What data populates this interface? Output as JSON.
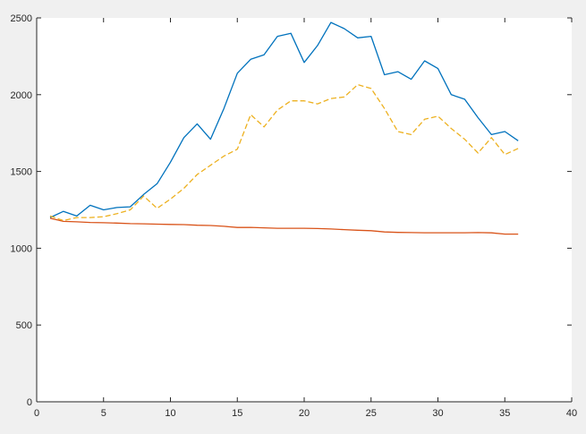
{
  "chart_data": {
    "type": "line",
    "title": "",
    "xlabel": "",
    "ylabel": "",
    "xlim": [
      0,
      40
    ],
    "ylim": [
      0,
      2500
    ],
    "xticks": [
      0,
      5,
      10,
      15,
      20,
      25,
      30,
      35,
      40
    ],
    "yticks": [
      0,
      500,
      1000,
      1500,
      2000,
      2500
    ],
    "xtick_labels": [
      "0",
      "5",
      "10",
      "15",
      "20",
      "25",
      "30",
      "35",
      "40"
    ],
    "ytick_labels": [
      "0",
      "500",
      "1000",
      "1500",
      "2000",
      "2500"
    ],
    "grid": false,
    "x": [
      1,
      2,
      3,
      4,
      5,
      6,
      7,
      8,
      9,
      10,
      11,
      12,
      13,
      14,
      15,
      16,
      17,
      18,
      19,
      20,
      21,
      22,
      23,
      24,
      25,
      26,
      27,
      28,
      29,
      30,
      31,
      32,
      33,
      34,
      35,
      36
    ],
    "series": [
      {
        "color": "#0072bd",
        "dash": "solid",
        "values": [
          1200,
          1240,
          1210,
          1280,
          1250,
          1265,
          1270,
          1350,
          1420,
          1560,
          1720,
          1810,
          1710,
          1910,
          2140,
          2230,
          2260,
          2380,
          2400,
          2210,
          2320,
          2470,
          2430,
          2370,
          2380,
          2130,
          2150,
          2100,
          2220,
          2170,
          2000,
          1970,
          1850,
          1740,
          1760,
          1700
        ]
      },
      {
        "color": "#d95319",
        "dash": "solid",
        "values": [
          1195,
          1175,
          1172,
          1168,
          1166,
          1164,
          1160,
          1159,
          1157,
          1155,
          1154,
          1150,
          1148,
          1143,
          1135,
          1136,
          1133,
          1130,
          1130,
          1130,
          1128,
          1125,
          1121,
          1117,
          1114,
          1106,
          1103,
          1102,
          1101,
          1101,
          1101,
          1101,
          1102,
          1100,
          1092,
          1092
        ]
      },
      {
        "color": "#edb120",
        "dash": "dashed",
        "values": [
          1210,
          1180,
          1200,
          1200,
          1205,
          1225,
          1250,
          1340,
          1260,
          1320,
          1390,
          1480,
          1540,
          1600,
          1645,
          1870,
          1790,
          1900,
          1960,
          1960,
          1940,
          1975,
          1985,
          2065,
          2040,
          1910,
          1760,
          1740,
          1840,
          1860,
          1780,
          1710,
          1620,
          1720,
          1610,
          1650
        ]
      }
    ]
  }
}
